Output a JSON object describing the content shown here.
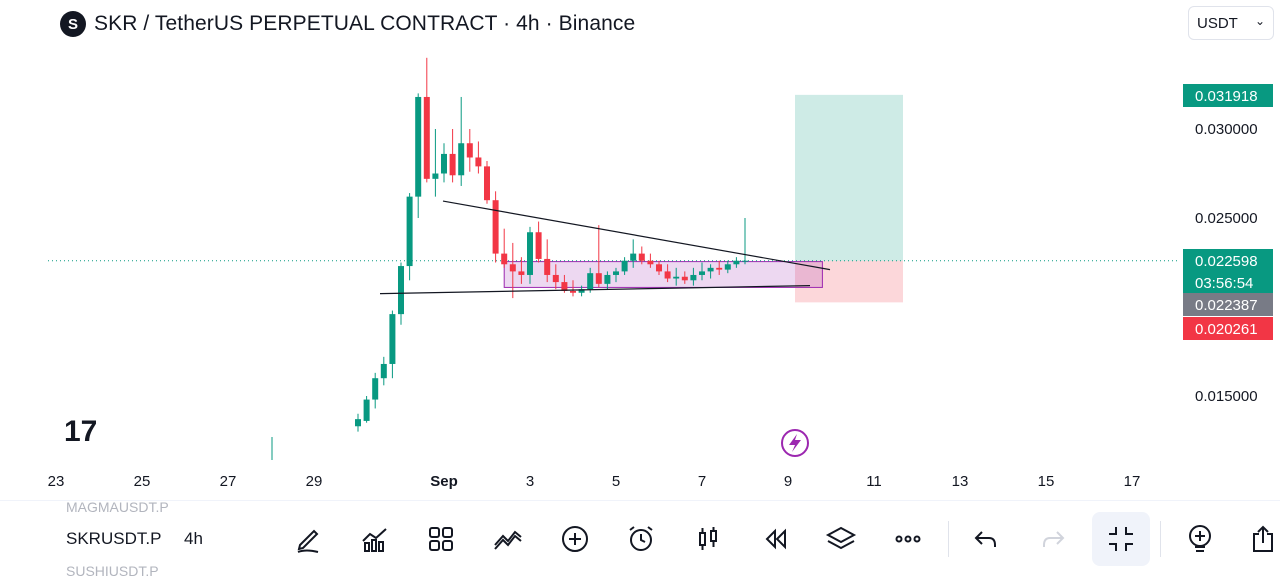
{
  "header": {
    "logo_letter": "S",
    "title": "SKR / TetherUS PERPETUAL CONTRACT · 4h · Binance"
  },
  "currency_select": {
    "value": "USDT",
    "chevron": "chevron-down-icon"
  },
  "watermark": "17",
  "chart_data": {
    "type": "candlestick",
    "symbol": "SKRUSDT.P",
    "interval": "4h",
    "y_ticks": [
      "0.030000",
      "0.025000",
      "0.015000"
    ],
    "y_tick_values": [
      0.03,
      0.025,
      0.015
    ],
    "x_tick_labels": [
      "23",
      "25",
      "27",
      "29",
      "Sep",
      "3",
      "5",
      "7",
      "9",
      "11",
      "13",
      "15",
      "17"
    ],
    "price_tags": [
      {
        "label": "0.031918",
        "value": 0.031918,
        "color": "#089981"
      },
      {
        "label": "0.022598",
        "value": 0.022598,
        "color": "#089981"
      },
      {
        "label": "03:56:54",
        "value": null,
        "color": "#089981"
      },
      {
        "label": "0.022387",
        "value": 0.022387,
        "color": "#787b86"
      },
      {
        "label": "0.020261",
        "value": 0.020261,
        "color": "#f23645"
      }
    ],
    "colors": {
      "up": "#089981",
      "down": "#f23645"
    },
    "candles_ohlc": [
      [
        0.0133,
        0.014,
        0.013,
        0.0137
      ],
      [
        0.0136,
        0.015,
        0.0135,
        0.0148
      ],
      [
        0.0148,
        0.0163,
        0.0143,
        0.016
      ],
      [
        0.016,
        0.0172,
        0.0156,
        0.0168
      ],
      [
        0.0168,
        0.0198,
        0.016,
        0.0196
      ],
      [
        0.0196,
        0.0225,
        0.019,
        0.0223
      ],
      [
        0.0223,
        0.0264,
        0.0215,
        0.0262
      ],
      [
        0.0262,
        0.032,
        0.025,
        0.0318
      ],
      [
        0.0318,
        0.034,
        0.027,
        0.0272
      ],
      [
        0.0272,
        0.03,
        0.0262,
        0.0275
      ],
      [
        0.0275,
        0.0292,
        0.027,
        0.0286
      ],
      [
        0.0286,
        0.03,
        0.027,
        0.0274
      ],
      [
        0.0274,
        0.0318,
        0.0268,
        0.0292
      ],
      [
        0.0292,
        0.03,
        0.0276,
        0.0284
      ],
      [
        0.0284,
        0.0293,
        0.0275,
        0.0279
      ],
      [
        0.0279,
        0.0282,
        0.0258,
        0.026
      ],
      [
        0.026,
        0.0265,
        0.0225,
        0.023
      ],
      [
        0.023,
        0.0244,
        0.0222,
        0.0224
      ],
      [
        0.0224,
        0.0236,
        0.0205,
        0.022
      ],
      [
        0.022,
        0.0228,
        0.0213,
        0.0218
      ],
      [
        0.0218,
        0.0245,
        0.0213,
        0.0242
      ],
      [
        0.0242,
        0.0248,
        0.0225,
        0.0227
      ],
      [
        0.0227,
        0.0238,
        0.0214,
        0.0218
      ],
      [
        0.0218,
        0.0224,
        0.021,
        0.0214
      ],
      [
        0.0214,
        0.0218,
        0.0208,
        0.0209
      ],
      [
        0.0209,
        0.0215,
        0.0206,
        0.0208
      ],
      [
        0.0208,
        0.0212,
        0.0206,
        0.021
      ],
      [
        0.021,
        0.0222,
        0.0208,
        0.0219
      ],
      [
        0.0219,
        0.0246,
        0.0211,
        0.0213
      ],
      [
        0.0213,
        0.022,
        0.021,
        0.0218
      ],
      [
        0.0218,
        0.0222,
        0.0214,
        0.022
      ],
      [
        0.022,
        0.0228,
        0.0218,
        0.0226
      ],
      [
        0.0226,
        0.0238,
        0.0222,
        0.023
      ],
      [
        0.023,
        0.0234,
        0.0224,
        0.0226
      ],
      [
        0.0226,
        0.023,
        0.0222,
        0.0224
      ],
      [
        0.0224,
        0.0226,
        0.0218,
        0.022
      ],
      [
        0.022,
        0.0224,
        0.0214,
        0.0216
      ],
      [
        0.0216,
        0.0222,
        0.0212,
        0.0217
      ],
      [
        0.0217,
        0.022,
        0.0213,
        0.0215
      ],
      [
        0.0215,
        0.0222,
        0.0212,
        0.0218
      ],
      [
        0.0218,
        0.0225,
        0.0215,
        0.022
      ],
      [
        0.022,
        0.0224,
        0.0216,
        0.0222
      ],
      [
        0.0222,
        0.0226,
        0.0218,
        0.0221
      ],
      [
        0.0221,
        0.0226,
        0.0219,
        0.0224
      ],
      [
        0.0224,
        0.0228,
        0.0222,
        0.0226
      ],
      [
        0.0226,
        0.025,
        0.0224,
        0.0226
      ]
    ],
    "drawings": {
      "triangle_upper": {
        "from_index": 12,
        "to_index": 54,
        "from_value": 0.02595,
        "to_value": 0.02255
      },
      "triangle_lower": {
        "from_index": -1,
        "to_index": 54,
        "from_value": 0.02075,
        "to_value": 0.0212
      },
      "range_box": {
        "from_index": 17,
        "to_index": 54,
        "top": 0.02255,
        "bottom": 0.0211
      },
      "position_long": {
        "entry": 0.022598,
        "target": 0.031918,
        "stop": 0.020261
      }
    }
  },
  "toolbar": {
    "symbol": "SKRUSDT.P",
    "symbol_prev": "MAGMAUSDT.P",
    "symbol_next": "SUSHIUSDT.P",
    "interval": "4h",
    "tools": [
      "pencil-icon",
      "indicators-icon",
      "grid-icon",
      "compare-icon",
      "add-icon",
      "alarm-icon",
      "candles-icon",
      "replay-icon",
      "layers-icon",
      "more-icon",
      "undo-icon",
      "redo-icon",
      "fullscreen-exit-icon",
      "add-object-icon",
      "share-icon"
    ]
  }
}
